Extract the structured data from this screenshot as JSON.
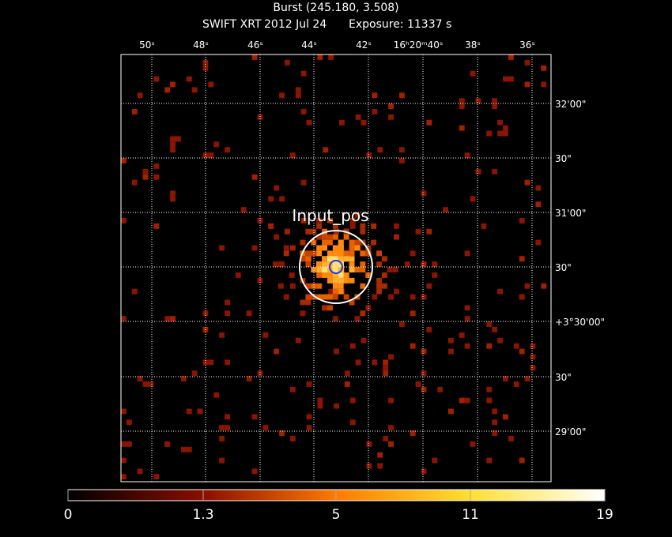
{
  "header": {
    "title": "Burst (245.180, 3.508)",
    "instrument": "SWIFT XRT",
    "date": "2012 Jul 24",
    "exposure": "Exposure: 11337 s"
  },
  "ra_labels": [
    "50ˢ",
    "48ˢ",
    "46ˢ",
    "44ˢ",
    "42ˢ",
    "16ʰ20ᵐ40ˢ",
    "38ˢ",
    "36ˢ"
  ],
  "dec_labels": [
    "32'00\"",
    "30\"",
    "31'00\"",
    "30\"",
    "+3°30'00\"",
    "30\"",
    "29'00\""
  ],
  "region_label": "Input_pos",
  "colorbar_labels": [
    "0",
    "1.3",
    "5",
    "11",
    "19"
  ]
}
